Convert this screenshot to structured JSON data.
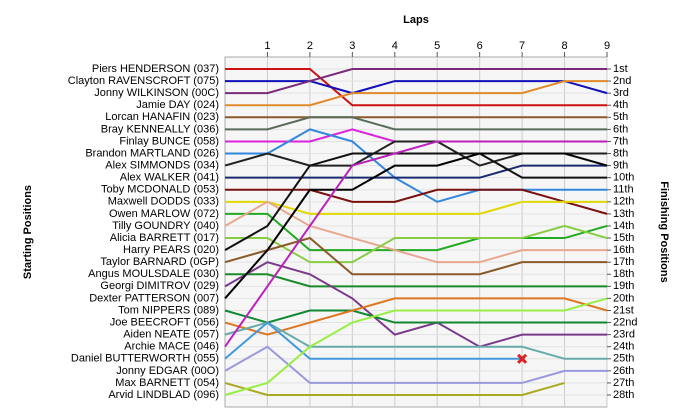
{
  "chart_data": {
    "type": "line",
    "title": "Laps",
    "ylabel": "Starting Positions",
    "y2label": "Finishing Positions",
    "x": [
      0,
      1,
      2,
      3,
      4,
      5,
      6,
      7,
      8,
      9
    ],
    "xlim": [
      0,
      9
    ],
    "xticks": [
      1,
      2,
      3,
      4,
      5,
      6,
      7,
      8,
      9
    ],
    "ylim": [
      1,
      28
    ],
    "yticks": [
      {
        "value": 1,
        "label": "1st"
      },
      {
        "value": 2,
        "label": "2nd"
      },
      {
        "value": 3,
        "label": "3rd"
      },
      {
        "value": 4,
        "label": "4th"
      },
      {
        "value": 5,
        "label": "5th"
      },
      {
        "value": 6,
        "label": "6th"
      },
      {
        "value": 7,
        "label": "7th"
      },
      {
        "value": 8,
        "label": "8th"
      },
      {
        "value": 9,
        "label": "9th"
      },
      {
        "value": 10,
        "label": "10th"
      },
      {
        "value": 11,
        "label": "11th"
      },
      {
        "value": 12,
        "label": "12th"
      },
      {
        "value": 13,
        "label": "13th"
      },
      {
        "value": 14,
        "label": "14th"
      },
      {
        "value": 15,
        "label": "15th"
      },
      {
        "value": 16,
        "label": "16th"
      },
      {
        "value": 17,
        "label": "17th"
      },
      {
        "value": 18,
        "label": "18th"
      },
      {
        "value": 19,
        "label": "19th"
      },
      {
        "value": 20,
        "label": "20th"
      },
      {
        "value": 21,
        "label": "21st"
      },
      {
        "value": 22,
        "label": "22nd"
      },
      {
        "value": 23,
        "label": "23rd"
      },
      {
        "value": 24,
        "label": "24th"
      },
      {
        "value": 25,
        "label": "25th"
      },
      {
        "value": 26,
        "label": "26th"
      },
      {
        "value": 27,
        "label": "27th"
      },
      {
        "value": 28,
        "label": "28th"
      }
    ],
    "grid": true,
    "series": [
      {
        "name": "Piers HENDERSON (037)",
        "color": "#cc1111",
        "values": [
          1,
          1,
          1,
          4,
          4,
          4,
          4,
          4,
          4,
          4
        ]
      },
      {
        "name": "Clayton RAVENSCROFT (075)",
        "color": "#1111bb",
        "values": [
          2,
          2,
          2,
          3,
          2,
          2,
          2,
          2,
          2,
          3
        ]
      },
      {
        "name": "Jonny WILKINSON (00C)",
        "color": "#7a2a7a",
        "values": [
          3,
          3,
          2,
          1,
          1,
          1,
          1,
          1,
          1,
          1
        ]
      },
      {
        "name": "Jamie DAY (024)",
        "color": "#e08a2a",
        "values": [
          4,
          4,
          4,
          3,
          3,
          3,
          3,
          3,
          2,
          2
        ]
      },
      {
        "name": "Lorcan HANAFIN (023)",
        "color": "#8b5a2b",
        "values": [
          5,
          5,
          5,
          5,
          5,
          5,
          5,
          5,
          5,
          5
        ]
      },
      {
        "name": "Bray KENNEALLY (036)",
        "color": "#5a6b5a",
        "values": [
          6,
          6,
          5,
          5,
          6,
          6,
          6,
          6,
          6,
          6
        ]
      },
      {
        "name": "Finlay BUNCE (058)",
        "color": "#dd22dd",
        "values": [
          7,
          7,
          7,
          6,
          7,
          7,
          7,
          7,
          7,
          7
        ]
      },
      {
        "name": "Brandon MARTLAND (026)",
        "color": "#3388dd",
        "values": [
          8,
          8,
          6,
          7,
          10,
          12,
          11,
          11,
          11,
          11
        ]
      },
      {
        "name": "Alex SIMMONDS (034)",
        "color": "#222222",
        "values": [
          9,
          8,
          9,
          9,
          7,
          7,
          9,
          8,
          8,
          8
        ]
      },
      {
        "name": "Alex WALKER (041)",
        "color": "#1a2a6e",
        "values": [
          10,
          10,
          10,
          10,
          10,
          10,
          10,
          9,
          9,
          9
        ]
      },
      {
        "name": "Toby MCDONALD (053)",
        "color": "#7a1010",
        "values": [
          11,
          11,
          11,
          12,
          12,
          11,
          11,
          11,
          12,
          13
        ]
      },
      {
        "name": "Maxwell DODDS (033)",
        "color": "#e0d800",
        "values": [
          12,
          12,
          13,
          13,
          13,
          13,
          13,
          12,
          12,
          12
        ]
      },
      {
        "name": "Owen MARLOW (072)",
        "color": "#22aa22",
        "values": [
          13,
          13,
          16,
          16,
          16,
          16,
          15,
          15,
          15,
          14
        ]
      },
      {
        "name": "Tilly GOUNDRY (040)",
        "color": "#e8a890",
        "values": [
          14,
          12,
          14,
          15,
          16,
          17,
          17,
          16,
          16,
          16
        ]
      },
      {
        "name": "Alicia BARRETT (017)",
        "color": "#88cc44",
        "values": [
          15,
          15,
          17,
          17,
          15,
          15,
          15,
          15,
          14,
          15
        ]
      },
      {
        "name": "Harry PEARS (020)",
        "color": "#111111",
        "values": [
          16,
          14,
          9,
          8,
          8,
          8,
          8,
          10,
          10,
          10
        ]
      },
      {
        "name": "Taylor BARNARD (0GP)",
        "color": "#8a5a2a",
        "values": [
          17,
          16,
          15,
          18,
          18,
          18,
          18,
          17,
          17,
          17
        ]
      },
      {
        "name": "Angus MOULSDALE (030)",
        "color": "#1a8a2a",
        "values": [
          18,
          18,
          19,
          19,
          19,
          19,
          19,
          19,
          19,
          19
        ]
      },
      {
        "name": "Georgi DIMITROV (029)",
        "color": "#7a3a8a",
        "values": [
          19,
          17,
          18,
          20,
          23,
          22,
          24,
          23,
          23,
          23
        ]
      },
      {
        "name": "Dexter PATTERSON (007)",
        "color": "#000000",
        "values": [
          20,
          16,
          11,
          11,
          9,
          9,
          8,
          8,
          8,
          9
        ]
      },
      {
        "name": "Tom NIPPERS (089)",
        "color": "#118833",
        "values": [
          21,
          22,
          21,
          21,
          22,
          22,
          22,
          22,
          22,
          22
        ]
      },
      {
        "name": "Joe BEECROFT (056)",
        "color": "#dd7722",
        "values": [
          22,
          23,
          22,
          21,
          20,
          20,
          20,
          20,
          20,
          21
        ]
      },
      {
        "name": "Aiden NEATE (057)",
        "color": "#66aaaa",
        "values": [
          23,
          22,
          24,
          24,
          24,
          24,
          24,
          24,
          25,
          25
        ]
      },
      {
        "name": "Archie MACE (046)",
        "color": "#bb22bb",
        "values": [
          24,
          19,
          14,
          9,
          8,
          7,
          7,
          7,
          7,
          7
        ]
      },
      {
        "name": "Daniel BUTTERWORTH (055)",
        "color": "#4499dd",
        "values": [
          25,
          22,
          25,
          25,
          25,
          25,
          25,
          25,
          null,
          null
        ]
      },
      {
        "name": "Jonny EDGAR (00O)",
        "color": "#9999dd",
        "values": [
          26,
          24,
          27,
          27,
          27,
          27,
          27,
          27,
          26,
          26
        ]
      },
      {
        "name": "Max BARNETT (054)",
        "color": "#aaaa22",
        "values": [
          27,
          28,
          28,
          28,
          28,
          28,
          28,
          28,
          27,
          null
        ]
      },
      {
        "name": "Arvid LINDBLAD (096)",
        "color": "#99ee44",
        "values": [
          28,
          27,
          24,
          22,
          21,
          21,
          21,
          21,
          21,
          20
        ]
      }
    ],
    "markers": [
      {
        "x": 7,
        "y": 25,
        "color": "#dd2222"
      }
    ]
  }
}
